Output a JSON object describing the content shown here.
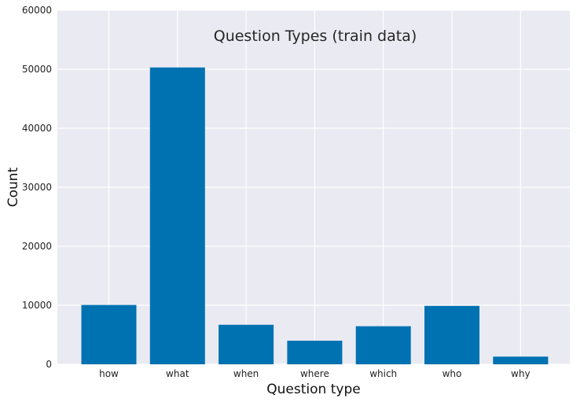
{
  "chart_data": {
    "type": "bar",
    "title": "Question Types (train data)",
    "xlabel": "Question type",
    "ylabel": "Count",
    "categories": [
      "how",
      "what",
      "when",
      "where",
      "which",
      "who",
      "why"
    ],
    "values": [
      10050,
      50300,
      6700,
      4000,
      6450,
      9900,
      1300
    ],
    "ylim": [
      0,
      60000
    ],
    "yticks": [
      0,
      10000,
      20000,
      30000,
      40000,
      50000,
      60000
    ],
    "ytick_labels": [
      "0",
      "10000",
      "20000",
      "30000",
      "40000",
      "50000",
      "60000"
    ],
    "grid": true,
    "legend": "none",
    "bar_color": "#0072b2",
    "plot_background": "#eaeaf2",
    "grid_color": "#ffffff"
  }
}
